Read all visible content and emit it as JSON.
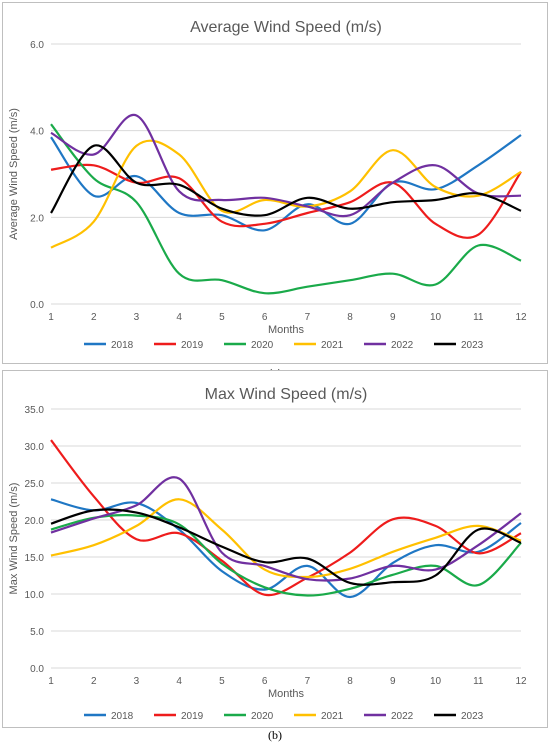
{
  "captions": [
    "(a)",
    "(b)"
  ],
  "chart_data": [
    {
      "type": "line",
      "title": "Average Wind Speed (m/s)",
      "xlabel": "Months",
      "ylabel": "Average Wind Speed (m/s)",
      "x": [
        1,
        2,
        3,
        4,
        5,
        6,
        7,
        8,
        9,
        10,
        11,
        12
      ],
      "ylim": [
        0,
        6
      ],
      "yticks": [
        "0.0",
        "2.0",
        "4.0",
        "6.0"
      ],
      "grid": "horizontal",
      "legend": "bottom",
      "series": [
        {
          "name": "2018",
          "color": "#1f77c4",
          "values": [
            3.85,
            2.5,
            2.95,
            2.1,
            2.05,
            1.7,
            2.3,
            1.85,
            2.8,
            2.65,
            3.2,
            3.9
          ]
        },
        {
          "name": "2019",
          "color": "#ee1c1c",
          "values": [
            3.1,
            3.2,
            2.8,
            2.9,
            1.9,
            1.85,
            2.1,
            2.35,
            2.8,
            1.85,
            1.6,
            3.05
          ]
        },
        {
          "name": "2020",
          "color": "#1aaa4a",
          "values": [
            4.15,
            2.9,
            2.35,
            0.7,
            0.55,
            0.25,
            0.4,
            0.55,
            0.7,
            0.45,
            1.35,
            1.0
          ]
        },
        {
          "name": "2021",
          "color": "#ffc000",
          "values": [
            1.3,
            1.9,
            3.65,
            3.45,
            2.15,
            2.4,
            2.25,
            2.6,
            3.55,
            2.7,
            2.5,
            3.05
          ]
        },
        {
          "name": "2022",
          "color": "#7030a0",
          "values": [
            3.95,
            3.45,
            4.35,
            2.6,
            2.4,
            2.45,
            2.25,
            2.05,
            2.8,
            3.2,
            2.55,
            2.5
          ]
        },
        {
          "name": "2023",
          "color": "#000000",
          "values": [
            2.1,
            3.65,
            2.8,
            2.75,
            2.2,
            2.05,
            2.45,
            2.2,
            2.35,
            2.4,
            2.55,
            2.15
          ]
        }
      ]
    },
    {
      "type": "line",
      "title": "Max Wind Speed (m/s)",
      "xlabel": "Months",
      "ylabel": "Max Wind Speed (m/s)",
      "x": [
        1,
        2,
        3,
        4,
        5,
        6,
        7,
        8,
        9,
        10,
        11,
        12
      ],
      "ylim": [
        0,
        35
      ],
      "yticks": [
        "0.0",
        "5.0",
        "10.0",
        "15.0",
        "20.0",
        "25.0",
        "30.0",
        "35.0"
      ],
      "grid": "horizontal",
      "legend": "bottom",
      "series": [
        {
          "name": "2018",
          "color": "#1f77c4",
          "values": [
            22.8,
            21.3,
            22.3,
            18.7,
            13.1,
            10.6,
            13.8,
            9.6,
            14.2,
            16.6,
            15.7,
            19.6
          ]
        },
        {
          "name": "2019",
          "color": "#ee1c1c",
          "values": [
            30.8,
            23.2,
            17.4,
            18.2,
            14.5,
            9.9,
            12.2,
            15.6,
            20.1,
            19.2,
            15.5,
            18.2
          ]
        },
        {
          "name": "2020",
          "color": "#1aaa4a",
          "values": [
            18.7,
            20.3,
            20.6,
            19.4,
            14.1,
            10.9,
            9.8,
            10.7,
            12.6,
            13.8,
            11.2,
            16.9
          ]
        },
        {
          "name": "2021",
          "color": "#ffc000",
          "values": [
            15.2,
            16.6,
            19.2,
            22.8,
            18.7,
            13.3,
            12.3,
            13.4,
            15.7,
            17.6,
            19.2,
            17.2
          ]
        },
        {
          "name": "2022",
          "color": "#7030a0",
          "values": [
            18.3,
            20.2,
            22.0,
            25.6,
            15.6,
            13.8,
            12.0,
            12.1,
            13.8,
            13.3,
            16.6,
            20.9
          ]
        },
        {
          "name": "2023",
          "color": "#000000",
          "values": [
            19.5,
            21.3,
            21.0,
            19.0,
            16.4,
            14.3,
            14.8,
            11.5,
            11.6,
            12.5,
            18.7,
            16.9
          ]
        }
      ]
    }
  ]
}
